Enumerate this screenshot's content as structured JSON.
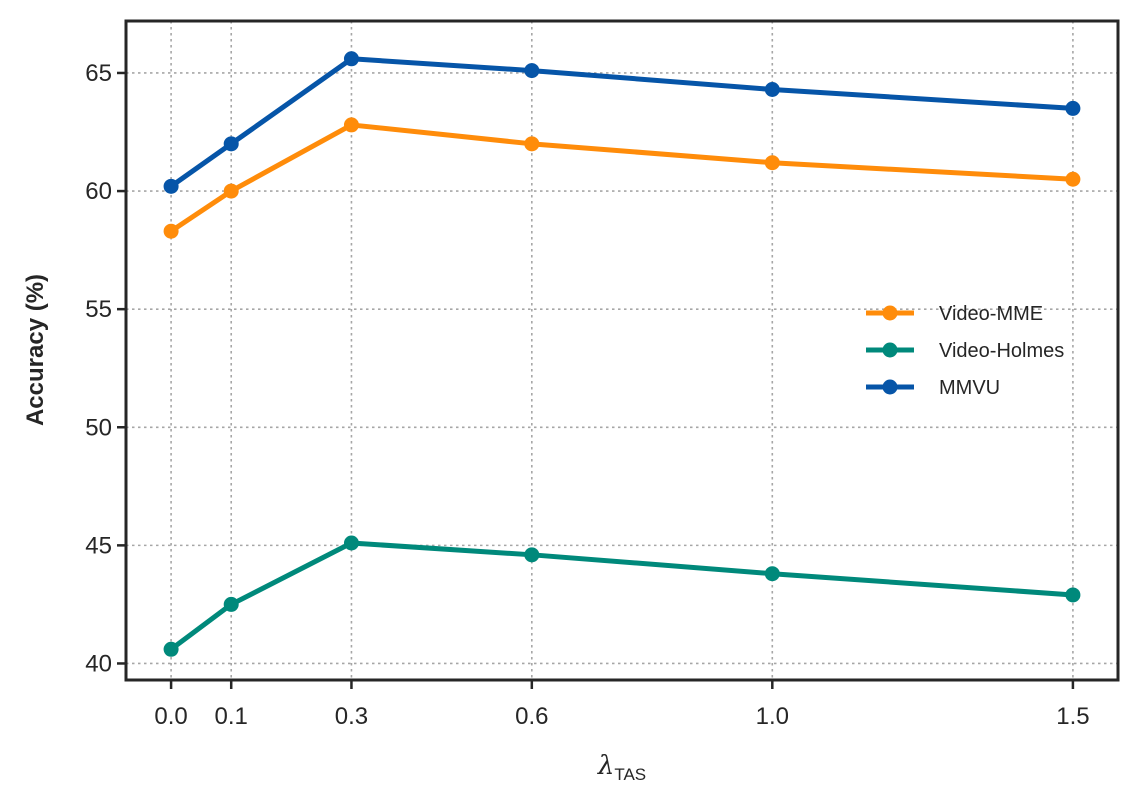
{
  "chart_data": {
    "type": "line",
    "title": "",
    "xlabel": "λ",
    "xlabel_subscript": "TAS",
    "ylabel": "Accuracy (%)",
    "x": [
      0.0,
      0.1,
      0.3,
      0.6,
      1.0,
      1.5
    ],
    "x_tick_labels": [
      "0.0",
      "0.1",
      "0.3",
      "0.6",
      "1.0",
      "1.5"
    ],
    "xlim": [
      -0.075,
      1.575
    ],
    "ylim": [
      39.3,
      67.2
    ],
    "y_ticks": [
      40,
      45,
      50,
      55,
      60,
      65
    ],
    "grid": true,
    "legend_position": "center-right",
    "series": [
      {
        "name": "Video-MME",
        "color": "#ff8c0a",
        "values": [
          58.3,
          60.0,
          62.8,
          62.0,
          61.2,
          60.5
        ]
      },
      {
        "name": "Video-Holmes",
        "color": "#00897b",
        "values": [
          40.6,
          42.5,
          45.1,
          44.6,
          43.8,
          42.9
        ]
      },
      {
        "name": "MMVU",
        "color": "#0655a8",
        "values": [
          60.2,
          62.0,
          65.6,
          65.1,
          64.3,
          63.5
        ]
      }
    ]
  }
}
